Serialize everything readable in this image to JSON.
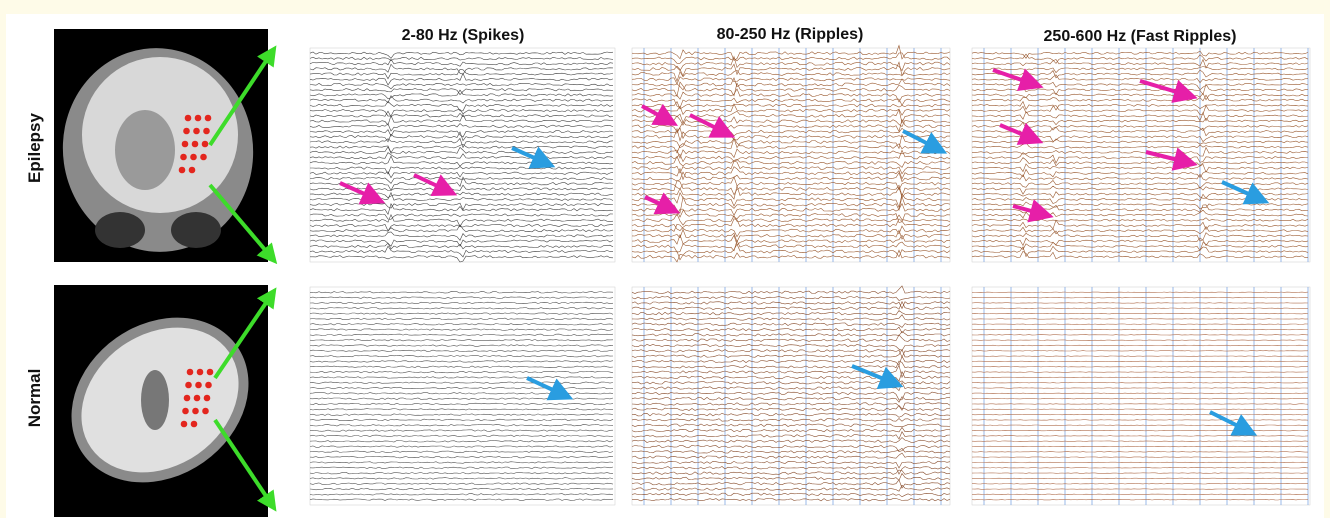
{
  "columns": [
    {
      "title": "2-80 Hz (Spikes)"
    },
    {
      "title": "80-250 Hz (Ripples)"
    },
    {
      "title": "250-600 Hz (Fast Ripples)"
    }
  ],
  "rows": [
    {
      "label": "Epilepsy"
    },
    {
      "label": "Normal"
    }
  ]
}
